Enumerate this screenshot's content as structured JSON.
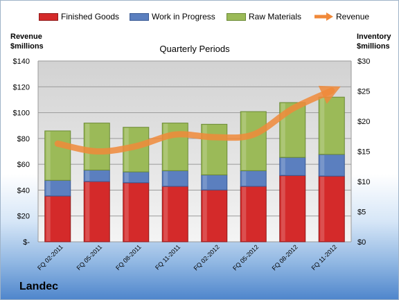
{
  "company": "Landec",
  "colors": {
    "finished_goods": "#d42a2a",
    "work_in_progress": "#5b7fbf",
    "raw_materials": "#9bba58",
    "revenue": "#f0893a"
  },
  "chart_data": {
    "type": "bar",
    "stacked": true,
    "title": "Quarterly Periods",
    "ylabel_left": [
      "Revenue",
      "$millions"
    ],
    "ylabel_right": [
      "Inventory",
      "$millions"
    ],
    "categories": [
      "FQ 02-2011",
      "FQ 05-2011",
      "FQ 08-2011",
      "FQ 11-2011",
      "FQ 02-2012",
      "FQ 05-2012",
      "FQ 08-2012",
      "FQ 11-2012"
    ],
    "series": [
      {
        "name": "Finished Goods",
        "axis": "right",
        "values": [
          7.6,
          10.0,
          9.8,
          9.2,
          8.6,
          9.2,
          11.0,
          10.9
        ]
      },
      {
        "name": "Work in Progress",
        "axis": "right",
        "values": [
          2.6,
          1.9,
          1.8,
          2.6,
          2.5,
          2.6,
          3.0,
          3.6
        ]
      },
      {
        "name": "Raw Materials",
        "axis": "right",
        "values": [
          8.2,
          7.8,
          7.4,
          7.9,
          8.4,
          9.8,
          9.1,
          9.5
        ]
      },
      {
        "name": "Revenue",
        "type": "line",
        "axis": "left",
        "values": [
          76,
          70,
          74,
          83,
          81,
          83,
          103,
          117
        ]
      }
    ],
    "left_axis": {
      "ylim": [
        0,
        140
      ],
      "ticks": [
        0,
        20,
        40,
        60,
        80,
        100,
        120,
        140
      ],
      "tick_labels": [
        "$-",
        "$20",
        "$40",
        "$60",
        "$80",
        "$100",
        "$120",
        "$140"
      ]
    },
    "right_axis": {
      "ylim": [
        0,
        30
      ],
      "ticks": [
        0,
        5,
        10,
        15,
        20,
        25,
        30
      ],
      "tick_labels": [
        "$0",
        "$5",
        "$10",
        "$15",
        "$20",
        "$25",
        "$30"
      ]
    },
    "grid": true,
    "legend": "top"
  }
}
